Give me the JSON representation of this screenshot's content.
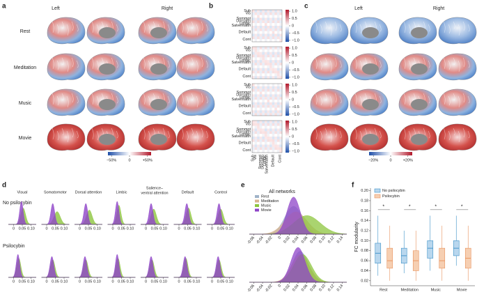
{
  "panel_a": {
    "letter": "a",
    "left": "Left",
    "right": "Right",
    "rows": [
      "Rest",
      "Meditation",
      "Music",
      "Movie"
    ],
    "colorbar": {
      "lim": [
        -60,
        60
      ],
      "ticks": [
        {
          "value": -50,
          "label": "−50%"
        },
        0,
        {
          "value": 50,
          "label": "+50%"
        }
      ]
    }
  },
  "panel_b": {
    "letter": "b",
    "networks": [
      "Sub",
      "Vis",
      "Sommot",
      "Dorsattn",
      "Limbic",
      "Salventattn",
      "Default",
      "Cont"
    ],
    "colorbar": {
      "lim": [
        -1.1,
        1.1
      ],
      "ticks": [
        {
          "value": 1,
          "label": "1.0"
        },
        0.5,
        0,
        {
          "value": -0.5,
          "label": "−0.5"
        },
        {
          "value": -1,
          "label": "−1.0"
        }
      ]
    }
  },
  "panel_c": {
    "letter": "c",
    "left": "Left",
    "right": "Right",
    "colorbar": {
      "lim": [
        -25,
        25
      ],
      "ticks": [
        {
          "value": -20,
          "label": "−20%"
        },
        0,
        {
          "value": 20,
          "label": "+20%"
        }
      ]
    }
  },
  "chart_data": [
    {
      "type": "density",
      "letter": "d",
      "row_labels": [
        "No psilocybin",
        "Psilocybin"
      ],
      "xlim": [
        -0.03,
        0.13
      ],
      "xticks": [
        0,
        0.05,
        {
          "value": 0.1,
          "label": "0.10"
        }
      ],
      "panels": [
        {
          "title": "Visual",
          "no_psilocybin": [
            {
              "color": "#8dc63f",
              "mean": 0.055,
              "sd": 0.014
            },
            {
              "color": "#8e44c8",
              "mean": 0.045,
              "sd": 0.01
            }
          ],
          "psilocybin": [
            {
              "color": "#8dc63f",
              "mean": 0.03,
              "sd": 0.012
            },
            {
              "color": "#8e44c8",
              "mean": 0.025,
              "sd": 0.01
            }
          ]
        },
        {
          "title": "Somatomotor",
          "no_psilocybin": [
            {
              "color": "#8dc63f",
              "mean": 0.06,
              "sd": 0.018
            },
            {
              "color": "#8e44c8",
              "mean": 0.035,
              "sd": 0.011
            }
          ],
          "psilocybin": [
            {
              "color": "#8dc63f",
              "mean": 0.035,
              "sd": 0.013
            },
            {
              "color": "#8e44c8",
              "mean": 0.03,
              "sd": 0.011
            }
          ]
        },
        {
          "title": "Dorsal attention",
          "no_psilocybin": [
            {
              "color": "#8dc63f",
              "mean": 0.055,
              "sd": 0.016
            },
            {
              "color": "#8e44c8",
              "mean": 0.035,
              "sd": 0.011
            }
          ],
          "psilocybin": [
            {
              "color": "#8dc63f",
              "mean": 0.035,
              "sd": 0.013
            },
            {
              "color": "#8e44c8",
              "mean": 0.03,
              "sd": 0.011
            }
          ]
        },
        {
          "title": "Limbic",
          "no_psilocybin": [
            {
              "color": "#8dc63f",
              "mean": 0.035,
              "sd": 0.012
            },
            {
              "color": "#8e44c8",
              "mean": 0.025,
              "sd": 0.01
            }
          ],
          "psilocybin": [
            {
              "color": "#8dc63f",
              "mean": 0.03,
              "sd": 0.012
            },
            {
              "color": "#8e44c8",
              "mean": 0.025,
              "sd": 0.01
            }
          ]
        },
        {
          "title": [
            "Salience–",
            "ventral attention"
          ],
          "no_psilocybin": [
            {
              "color": "#8dc63f",
              "mean": 0.045,
              "sd": 0.015
            },
            {
              "color": "#8e44c8",
              "mean": 0.03,
              "sd": 0.011
            }
          ],
          "psilocybin": [
            {
              "color": "#8dc63f",
              "mean": 0.035,
              "sd": 0.013
            },
            {
              "color": "#8e44c8",
              "mean": 0.03,
              "sd": 0.011
            }
          ]
        },
        {
          "title": "Default",
          "no_psilocybin": [
            {
              "color": "#8dc63f",
              "mean": 0.055,
              "sd": 0.014
            },
            {
              "color": "#8e44c8",
              "mean": 0.045,
              "sd": 0.011
            }
          ],
          "psilocybin": [
            {
              "color": "#8dc63f",
              "mean": 0.04,
              "sd": 0.012
            },
            {
              "color": "#8e44c8",
              "mean": 0.035,
              "sd": 0.011
            }
          ]
        },
        {
          "title": "Control",
          "no_psilocybin": [
            {
              "color": "#8dc63f",
              "mean": 0.05,
              "sd": 0.015
            },
            {
              "color": "#8e44c8",
              "mean": 0.04,
              "sd": 0.011
            }
          ],
          "psilocybin": [
            {
              "color": "#8dc63f",
              "mean": 0.04,
              "sd": 0.013
            },
            {
              "color": "#8e44c8",
              "mean": 0.035,
              "sd": 0.011
            }
          ]
        }
      ]
    },
    {
      "type": "density",
      "letter": "e",
      "title": "All networks",
      "xlim": [
        -0.07,
        0.15
      ],
      "xticks": [
        -0.06,
        -0.04,
        -0.02,
        0,
        0.02,
        0.04,
        0.06,
        0.08,
        {
          "value": 0.1,
          "label": "0.10"
        },
        0.12,
        0.14
      ],
      "series": [
        {
          "name": "Rest",
          "color": "#9fb3c8",
          "no_psilocybin": {
            "mean": 0.03,
            "sd": 0.02
          },
          "psilocybin": {
            "mean": 0.045,
            "sd": 0.018
          }
        },
        {
          "name": "Meditation",
          "color": "#d9b48f",
          "no_psilocybin": {
            "mean": 0.035,
            "sd": 0.025
          },
          "psilocybin": {
            "mean": 0.045,
            "sd": 0.02
          }
        },
        {
          "name": "Music",
          "color": "#8dc63f",
          "no_psilocybin": {
            "mean": 0.06,
            "sd": 0.03
          },
          "psilocybin": {
            "mean": 0.05,
            "sd": 0.02
          }
        },
        {
          "name": "Movie",
          "color": "#8e44c8",
          "no_psilocybin": {
            "mean": 0.03,
            "sd": 0.015
          },
          "psilocybin": {
            "mean": 0.04,
            "sd": 0.016
          }
        }
      ]
    },
    {
      "type": "box",
      "letter": "f",
      "ylabel": "FC modularity",
      "categories": [
        "Rest",
        "Meditation",
        "Music",
        "Movie"
      ],
      "ylim": [
        0.01,
        0.205
      ],
      "yticks": [
        0.02,
        0.04,
        0.06,
        0.08,
        {
          "value": 0.1,
          "label": "0.10"
        },
        0.12,
        0.14,
        0.16,
        0.18,
        {
          "value": 0.2,
          "label": "0.20"
        }
      ],
      "legend": "upper left",
      "significance": [
        "*",
        "*",
        "*",
        "*"
      ],
      "series": [
        {
          "name": "No psilocybin",
          "color": "#3b8fc7",
          "fill": "#b9d7ee",
          "low": [
            0.03,
            0.035,
            0.04,
            0.05
          ],
          "q1": [
            0.055,
            0.055,
            0.065,
            0.07
          ],
          "median": [
            0.075,
            0.07,
            0.085,
            0.085
          ],
          "q3": [
            0.095,
            0.085,
            0.1,
            0.1
          ],
          "high": [
            0.15,
            0.12,
            0.15,
            0.15
          ]
        },
        {
          "name": "Psilocybin",
          "color": "#e8915a",
          "fill": "#f6cfb2",
          "low": [
            0.02,
            0.02,
            0.02,
            0.02
          ],
          "q1": [
            0.045,
            0.04,
            0.045,
            0.045
          ],
          "median": [
            0.06,
            0.06,
            0.06,
            0.065
          ],
          "q3": [
            0.085,
            0.08,
            0.085,
            0.085
          ],
          "high": [
            0.13,
            0.12,
            0.13,
            0.13
          ]
        }
      ]
    }
  ]
}
